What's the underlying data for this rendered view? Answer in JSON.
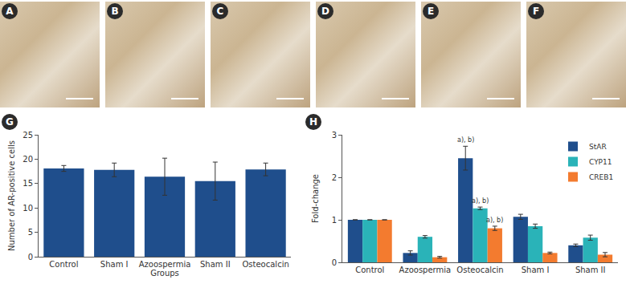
{
  "image_panels": [
    "A",
    "B",
    "C",
    "D",
    "E",
    "F"
  ],
  "chart_data": [
    {
      "panel_label": "G",
      "type": "bar",
      "x_label": "Groups",
      "y_label": "Number of AR-positive cells",
      "categories": [
        "Control",
        "Sham I",
        "Azoospermia",
        "Sham II",
        "Osteocalcin"
      ],
      "values": [
        18.1,
        17.8,
        16.4,
        15.5,
        17.9
      ],
      "errors": [
        0.6,
        1.4,
        3.8,
        3.9,
        1.3
      ],
      "color": "#1f4e8c",
      "ylim": [
        0,
        25
      ],
      "yticks": [
        0,
        5,
        10,
        15,
        20,
        25
      ],
      "grid": false
    },
    {
      "panel_label": "H",
      "type": "bar",
      "y_label": "Fold-change",
      "categories": [
        "Control",
        "Azoospermia",
        "Osteocalcin",
        "Sham I",
        "Sham II"
      ],
      "series": [
        {
          "name": "StAR",
          "color": "#1f4e8c",
          "values": [
            1,
            0.22,
            2.45,
            1.07,
            0.4
          ],
          "errors": [
            0,
            0.05,
            0.28,
            0.06,
            0.03
          ]
        },
        {
          "name": "CYP11",
          "color": "#2ab3b8",
          "values": [
            1,
            0.6,
            1.27,
            0.85,
            0.58
          ],
          "errors": [
            0,
            0.03,
            0.03,
            0.05,
            0.06
          ]
        },
        {
          "name": "CREB1",
          "color": "#f37b2f",
          "values": [
            1,
            0.12,
            0.8,
            0.22,
            0.18
          ],
          "errors": [
            0,
            0.02,
            0.05,
            0.02,
            0.05
          ]
        }
      ],
      "annotations": [
        {
          "series": "StAR",
          "category": "Osteocalcin",
          "text": "a), b)"
        },
        {
          "series": "CYP11",
          "category": "Osteocalcin",
          "text": "a), b)"
        },
        {
          "series": "CREB1",
          "category": "Osteocalcin",
          "text": "a), b)"
        }
      ],
      "ylim": [
        0,
        3
      ],
      "yticks": [
        0,
        1,
        2,
        3
      ],
      "grid": false,
      "legend": "upper right"
    }
  ]
}
